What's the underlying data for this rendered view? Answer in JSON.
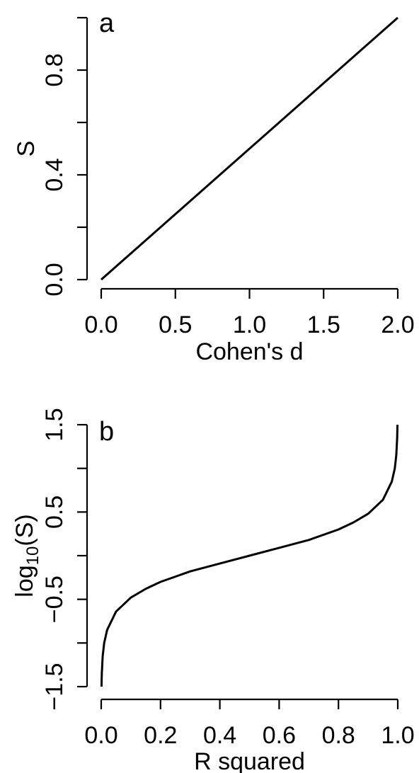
{
  "chart_data": [
    {
      "type": "line",
      "panel_label": "a",
      "xlabel": "Cohen's d",
      "ylabel": "S",
      "xlim": [
        0,
        2
      ],
      "ylim": [
        0,
        1
      ],
      "x_ticks": [
        0,
        0.5,
        1,
        1.5,
        2
      ],
      "x_tick_labels": [
        "0.0",
        "0.5",
        "1.0",
        "1.5",
        "2.0"
      ],
      "y_ticks": [
        0,
        0.2,
        0.4,
        0.6,
        0.8,
        1.0
      ],
      "y_tick_labels": [
        "0.0",
        "",
        "0.4",
        "",
        "0.8",
        ""
      ],
      "grid": false,
      "series": [
        {
          "x": [
            0,
            0.5,
            1.0,
            1.5,
            2.0
          ],
          "y": [
            0,
            0.25,
            0.5,
            0.75,
            1.0
          ],
          "color": "#000000"
        }
      ]
    },
    {
      "type": "line",
      "panel_label": "b",
      "xlabel": "R squared",
      "ylabel": "log10(S)",
      "ylabel_base": "log",
      "ylabel_sub": "10",
      "ylabel_rest": "(S)",
      "xlim": [
        0,
        1
      ],
      "ylim": [
        -1.5,
        1.5
      ],
      "x_ticks": [
        0,
        0.2,
        0.4,
        0.6,
        0.8,
        1.0
      ],
      "x_tick_labels": [
        "0.0",
        "0.2",
        "0.4",
        "0.6",
        "0.8",
        "1.0"
      ],
      "y_ticks": [
        -1.5,
        -1.0,
        -0.5,
        0,
        0.5,
        1.0,
        1.5
      ],
      "y_tick_labels": [
        "-1.5",
        "",
        "-0.5",
        "",
        "0.5",
        "",
        "1.5"
      ],
      "grid": false,
      "series": [
        {
          "x": [
            0.001,
            0.002,
            0.005,
            0.01,
            0.02,
            0.05,
            0.1,
            0.15,
            0.2,
            0.3,
            0.4,
            0.5,
            0.6,
            0.7,
            0.8,
            0.85,
            0.9,
            0.95,
            0.98,
            0.99,
            0.995,
            0.998,
            0.999
          ],
          "y": [
            -1.5,
            -1.35,
            -1.15,
            -1.0,
            -0.85,
            -0.64,
            -0.48,
            -0.38,
            -0.3,
            -0.18,
            -0.09,
            0.0,
            0.09,
            0.18,
            0.3,
            0.38,
            0.48,
            0.64,
            0.85,
            1.0,
            1.15,
            1.35,
            1.5
          ],
          "color": "#000000"
        }
      ]
    }
  ]
}
